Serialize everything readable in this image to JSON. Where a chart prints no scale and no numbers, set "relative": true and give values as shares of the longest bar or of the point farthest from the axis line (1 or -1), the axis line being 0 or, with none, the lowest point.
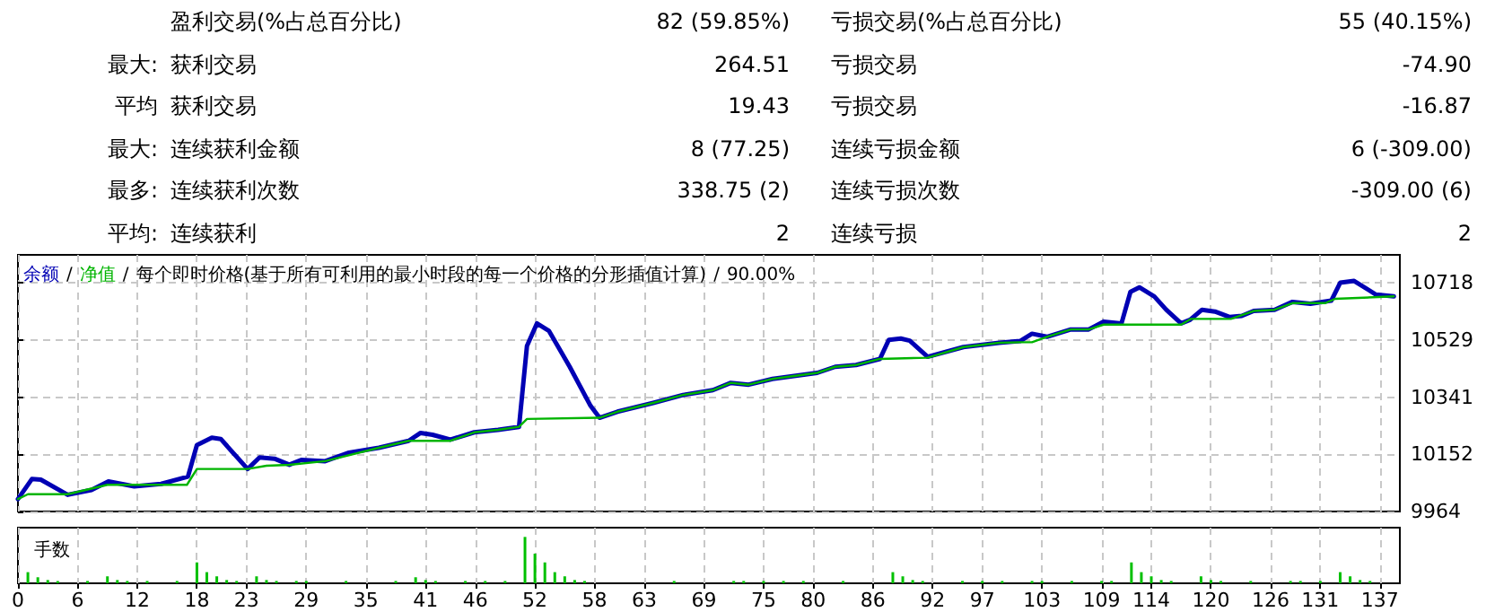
{
  "chart_data": [
    {
      "type": "other",
      "annotations": [
        "盈利交易(%占总百分比)",
        "82 (59.85%)",
        "亏损交易(%占总百分比)",
        "55 (40.15%)",
        "最大:",
        "获利交易",
        "264.51",
        "亏损交易",
        "-74.90",
        "平均",
        "获利交易",
        "19.43",
        "亏损交易",
        "-16.87",
        "最大:",
        "连续获利金额",
        "8 (77.25)",
        "连续亏损金额",
        "6 (-309.00)",
        "最多:",
        "连续获利次数",
        "338.75 (2)",
        "连续亏损次数",
        "-309.00 (6)",
        "平均:",
        "连续获利",
        "2",
        "连续亏损",
        "2"
      ]
    },
    {
      "type": "line",
      "legend": "top left",
      "grid": true,
      "line_style": "solid",
      "marker": "none",
      "tick_labels": "y",
      "annotations": [
        "/",
        "/",
        "每个即时价格(基于所有可利用的最小时段的每一个价格的分形插值计算)",
        "/",
        "90.00%"
      ],
      "xlim": [
        0,
        139
      ],
      "xticks": [
        0,
        6,
        12,
        18,
        23,
        29,
        35,
        41,
        46,
        52,
        58,
        63,
        69,
        75,
        80,
        86,
        92,
        97,
        103,
        109,
        114,
        120,
        126,
        131,
        137
      ],
      "ylim": [
        9964,
        10810
      ],
      "yticks": [
        9964,
        10152,
        10341,
        10529,
        10718
      ],
      "series": [
        {
          "name": "余额",
          "color": "#0000b4",
          "x": [
            0,
            1.4,
            2.3,
            5,
            7.4,
            9.1,
            11.7,
            14.4,
            17.1,
            18,
            19.5,
            20.4,
            23.1,
            24.3,
            25.8,
            27.3,
            28.5,
            30.9,
            33.3,
            36.3,
            39.3,
            40.5,
            41.7,
            43.5,
            45.9,
            48.3,
            50.4,
            51.2,
            52.2,
            53.4,
            55.5,
            57.6,
            58.5,
            60.3,
            63.9,
            66.9,
            69.9,
            71.7,
            73.5,
            75.9,
            80.4,
            82.2,
            84.3,
            86.7,
            87.6,
            88.8,
            89.7,
            91.5,
            95.1,
            98.7,
            100.8,
            102,
            103.5,
            105.9,
            107.7,
            109.2,
            111,
            111.9,
            112.8,
            114.3,
            115.5,
            117,
            117.9,
            119.1,
            120.4,
            121.9,
            123.1,
            124.3,
            126.4,
            128.2,
            130,
            132.1,
            133,
            134.4,
            136.6,
            138.4
          ],
          "values": [
            10005,
            10071,
            10069,
            10019,
            10035,
            10063,
            10047,
            10055,
            10079,
            10183,
            10207,
            10203,
            10104,
            10142,
            10138,
            10118,
            10134,
            10130,
            10158,
            10174,
            10197,
            10223,
            10217,
            10201,
            10225,
            10233,
            10243,
            10510,
            10584,
            10560,
            10441,
            10312,
            10273,
            10293,
            10322,
            10348,
            10364,
            10388,
            10382,
            10401,
            10421,
            10441,
            10447,
            10467,
            10530,
            10534,
            10527,
            10474,
            10506,
            10520,
            10526,
            10550,
            10540,
            10564,
            10564,
            10590,
            10584,
            10688,
            10703,
            10673,
            10629,
            10584,
            10596,
            10629,
            10623,
            10605,
            10609,
            10625,
            10629,
            10655,
            10649,
            10659,
            10718,
            10724,
            10679,
            10673
          ]
        },
        {
          "name": "净值",
          "color": "#00b400",
          "x": [
            0,
            1,
            5,
            9,
            17,
            18,
            23.1,
            25,
            27.3,
            30.9,
            36.3,
            39.3,
            43.5,
            45.9,
            48.3,
            50.4,
            51.2,
            58.5,
            60.3,
            63.9,
            66.9,
            69.9,
            71.7,
            73.5,
            75.9,
            80.4,
            82.2,
            84.3,
            86.7,
            91.5,
            95.1,
            98.7,
            100.8,
            102,
            103.5,
            105.9,
            107.7,
            109.2,
            117,
            118,
            122,
            124.3,
            126.4,
            128.2,
            131.5,
            132.5,
            138.4
          ],
          "values": [
            10005,
            10021,
            10021,
            10052,
            10052,
            10104,
            10104,
            10115,
            10118,
            10130,
            10174,
            10197,
            10197,
            10225,
            10233,
            10243,
            10269,
            10273,
            10293,
            10322,
            10348,
            10364,
            10388,
            10382,
            10401,
            10421,
            10441,
            10447,
            10467,
            10471,
            10506,
            10520,
            10522,
            10522,
            10540,
            10564,
            10564,
            10580,
            10580,
            10599,
            10599,
            10625,
            10629,
            10651,
            10651,
            10665,
            10673
          ]
        }
      ]
    },
    {
      "type": "bar",
      "title": "手数",
      "relative": true,
      "grid": "x",
      "tick_labels": "x",
      "color": "#00c000",
      "xlim": [
        0,
        139
      ],
      "xticks": [
        0,
        6,
        12,
        18,
        23,
        29,
        35,
        41,
        46,
        52,
        58,
        63,
        69,
        75,
        80,
        86,
        92,
        97,
        103,
        109,
        114,
        120,
        126,
        131,
        137
      ],
      "x": [
        1,
        2,
        3,
        4,
        7,
        9,
        10,
        11,
        13,
        16,
        18,
        19,
        20,
        21,
        22,
        24,
        25,
        26,
        28,
        29,
        33,
        38,
        40,
        41,
        42,
        45,
        47,
        49,
        51,
        52,
        53,
        54,
        55,
        56,
        57,
        66,
        72,
        73,
        75,
        77,
        79,
        83,
        88,
        89,
        90,
        91,
        95,
        97,
        99,
        102,
        103,
        106,
        109,
        110,
        112,
        113,
        114,
        115,
        116,
        119,
        120,
        121,
        124,
        128,
        129,
        131,
        133,
        134,
        135,
        136
      ],
      "values": [
        0.24,
        0.13,
        0.07,
        0.05,
        0.05,
        0.15,
        0.07,
        0.05,
        0.05,
        0.05,
        0.45,
        0.24,
        0.15,
        0.07,
        0.05,
        0.15,
        0.07,
        0.05,
        0.05,
        0.05,
        0.05,
        0.05,
        0.13,
        0.07,
        0.05,
        0.05,
        0.05,
        0.05,
        1,
        0.64,
        0.45,
        0.24,
        0.15,
        0.07,
        0.05,
        0.05,
        0.05,
        0.05,
        0.05,
        0.05,
        0.05,
        0.05,
        0.24,
        0.15,
        0.07,
        0.05,
        0.05,
        0.05,
        0.05,
        0.05,
        0.05,
        0.05,
        0.05,
        0.05,
        0.45,
        0.24,
        0.15,
        0.07,
        0.05,
        0.15,
        0.07,
        0.05,
        0.05,
        0.05,
        0.05,
        0.05,
        0.24,
        0.15,
        0.07,
        0.05
      ]
    }
  ]
}
